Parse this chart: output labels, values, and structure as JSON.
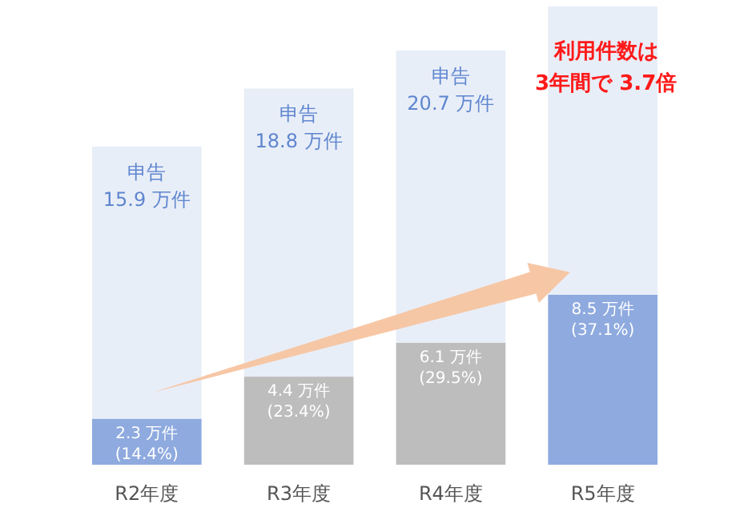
{
  "chart_data": {
    "type": "bar",
    "categories": [
      "R2年度",
      "R3年度",
      "R4年度",
      "R5年度"
    ],
    "stacked": true,
    "series": [
      {
        "colors": [
          "#8eaadf",
          "#bdbdbd",
          "#bdbdbd",
          "#8eaadf"
        ],
        "values": [
          2.3,
          4.4,
          6.1,
          8.5
        ],
        "value_labels": [
          "2.3 万件\n(14.4%)",
          "4.4 万件\n(23.4%)",
          "6.1 万件\n(29.5%)",
          "8.5 万件\n(37.1%)"
        ]
      },
      {
        "color": "#e8eef8",
        "values": [
          13.6,
          14.4,
          14.6,
          14.4
        ]
      }
    ],
    "totals": [
      "申告\n15.9 万件",
      "申告\n18.8 万件",
      "申告\n20.7 万件",
      null
    ],
    "annotations": [
      "利用件数は\n3年間で 3.7倍"
    ]
  }
}
